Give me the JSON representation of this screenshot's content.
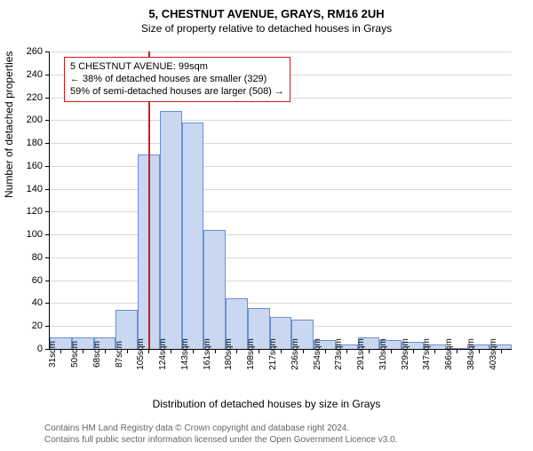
{
  "titles": {
    "main": "5, CHESTNUT AVENUE, GRAYS, RM16 2UH",
    "sub": "Size of property relative to detached houses in Grays"
  },
  "chart": {
    "type": "histogram",
    "plot_bg": "#ffffff",
    "grid_color": "#d9d9d9",
    "bar_fill": "#c9d8f0",
    "bar_stroke": "#6a8fd8",
    "bar_stroke_width": 1,
    "ylim": [
      0,
      260
    ],
    "ytick_step": 20,
    "yaxis_title": "Number of detached properties",
    "xaxis_title": "Distribution of detached houses by size in Grays",
    "x_labels": [
      "31sqm",
      "50sqm",
      "68sqm",
      "87sqm",
      "105sqm",
      "124sqm",
      "143sqm",
      "161sqm",
      "180sqm",
      "198sqm",
      "217sqm",
      "236sqm",
      "254sqm",
      "273sqm",
      "291sqm",
      "310sqm",
      "329sqm",
      "347sqm",
      "366sqm",
      "384sqm",
      "403sqm"
    ],
    "values": [
      10,
      10,
      10,
      34,
      170,
      208,
      198,
      104,
      44,
      36,
      28,
      26,
      8,
      4,
      10,
      8,
      6,
      4,
      0,
      4,
      4
    ],
    "marker_index_after": 4,
    "marker_color": "#d01c1c",
    "marker_width": 2
  },
  "annotation": {
    "line1": "5 CHESTNUT AVENUE: 99sqm",
    "line2": "← 38% of detached houses are smaller (329)",
    "line3": "59% of semi-detached houses are larger (508) →",
    "border_color": "#d01c1c",
    "bg_color": "#ffffff",
    "font_size": 11
  },
  "footer": {
    "line1": "Contains HM Land Registry data © Crown copyright and database right 2024.",
    "line2": "Contains full public sector information licensed under the Open Government Licence v3.0."
  }
}
